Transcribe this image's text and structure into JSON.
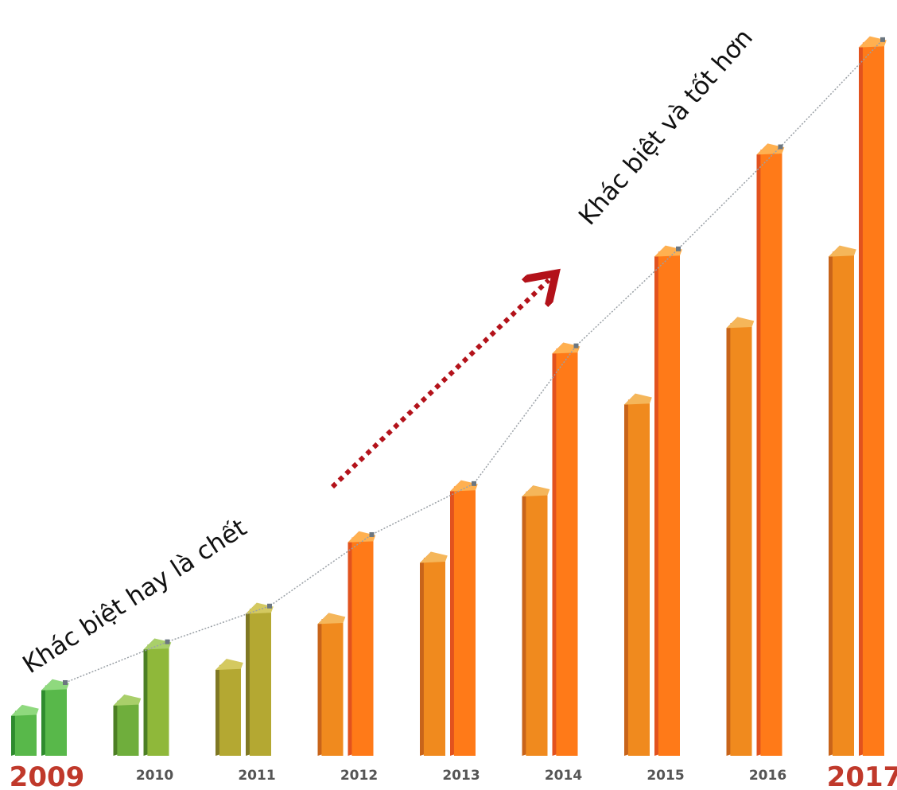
{
  "chart_data": {
    "type": "bar",
    "categories": [
      "2009",
      "2010",
      "2011",
      "2012",
      "2013",
      "2014",
      "2015",
      "2016",
      "2017"
    ],
    "series": [
      {
        "values": [
          1.0,
          1.2,
          1.9,
          2.8,
          4.0,
          5.3,
          7.1,
          8.6,
          10.0
        ]
      },
      {
        "values": [
          1.5,
          2.3,
          3.0,
          4.4,
          5.4,
          8.1,
          10.0,
          12.0,
          14.1
        ]
      }
    ],
    "title": "",
    "xlabel": "",
    "ylabel": "",
    "ylim": [
      0,
      14.5
    ],
    "legend": "none",
    "grid": false,
    "highlighted_categories": [
      "2009",
      "2017"
    ],
    "annotations": {
      "left": "Khác biệt hay là chết",
      "right": "Khác biệt và tốt hơn"
    },
    "colors": {
      "early_front": "#58b84a",
      "early_side": "#2e8b2e",
      "mid_front": "#b4a832",
      "late_front": "#f08a1e",
      "late_side": "#c8641a",
      "tall_front": "#ff7a18",
      "tall_side": "#e2521e",
      "arrow": "#b3121a",
      "year_highlight": "#c0392b",
      "year_normal": "#555555",
      "trend_line": "#9aa0a6"
    }
  }
}
